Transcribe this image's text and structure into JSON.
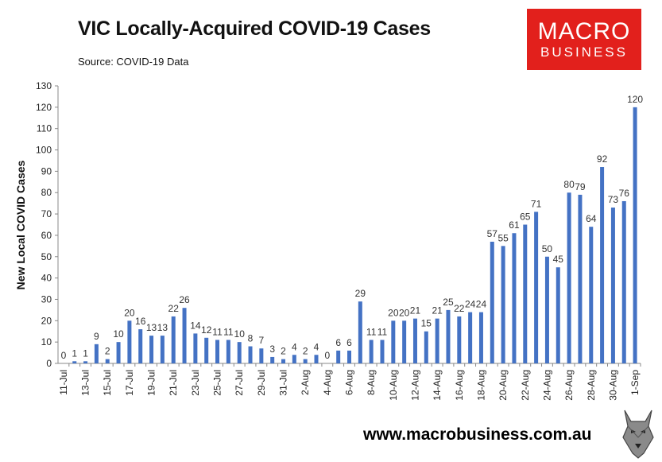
{
  "header": {
    "title": "VIC Locally-Acquired COVID-19 Cases",
    "source": "Source: COVID-19 Data"
  },
  "logo": {
    "line1": "MACRO",
    "line2": "BUSINESS",
    "brand_color": "#e2201c"
  },
  "footer": {
    "url": "www.macrobusiness.com.au",
    "mascot_icon": "wolf-icon"
  },
  "chart_data": {
    "type": "bar",
    "title": "VIC Locally-Acquired COVID-19 Cases",
    "xlabel": "",
    "ylabel": "New Local COVID Cases",
    "ylim": [
      0,
      130
    ],
    "yticks": [
      0,
      10,
      20,
      30,
      40,
      50,
      60,
      70,
      80,
      90,
      100,
      110,
      120,
      130
    ],
    "bar_color": "#4472c4",
    "categories": [
      "11-Jul",
      "12-Jul",
      "13-Jul",
      "14-Jul",
      "15-Jul",
      "16-Jul",
      "17-Jul",
      "18-Jul",
      "19-Jul",
      "20-Jul",
      "21-Jul",
      "22-Jul",
      "23-Jul",
      "24-Jul",
      "25-Jul",
      "26-Jul",
      "27-Jul",
      "28-Jul",
      "29-Jul",
      "30-Jul",
      "31-Jul",
      "1-Aug",
      "2-Aug",
      "3-Aug",
      "4-Aug",
      "5-Aug",
      "6-Aug",
      "7-Aug",
      "8-Aug",
      "9-Aug",
      "10-Aug",
      "11-Aug",
      "12-Aug",
      "13-Aug",
      "14-Aug",
      "15-Aug",
      "16-Aug",
      "17-Aug",
      "18-Aug",
      "19-Aug",
      "20-Aug",
      "21-Aug",
      "22-Aug",
      "23-Aug",
      "24-Aug",
      "25-Aug",
      "26-Aug",
      "27-Aug",
      "28-Aug",
      "29-Aug",
      "30-Aug",
      "31-Aug",
      "1-Sep"
    ],
    "xtick_labels": [
      "11-Jul",
      "13-Jul",
      "15-Jul",
      "17-Jul",
      "19-Jul",
      "21-Jul",
      "23-Jul",
      "25-Jul",
      "27-Jul",
      "29-Jul",
      "31-Jul",
      "2-Aug",
      "4-Aug",
      "6-Aug",
      "8-Aug",
      "10-Aug",
      "12-Aug",
      "14-Aug",
      "16-Aug",
      "18-Aug",
      "20-Aug",
      "22-Aug",
      "24-Aug",
      "26-Aug",
      "28-Aug",
      "30-Aug",
      "1-Sep"
    ],
    "values": [
      0,
      1,
      1,
      9,
      2,
      10,
      20,
      16,
      13,
      13,
      22,
      26,
      14,
      12,
      11,
      11,
      10,
      8,
      7,
      3,
      2,
      4,
      2,
      4,
      0,
      6,
      6,
      29,
      11,
      11,
      20,
      20,
      21,
      15,
      21,
      25,
      22,
      24,
      24,
      57,
      55,
      61,
      65,
      71,
      50,
      45,
      80,
      79,
      64,
      92,
      73,
      76,
      120
    ]
  }
}
